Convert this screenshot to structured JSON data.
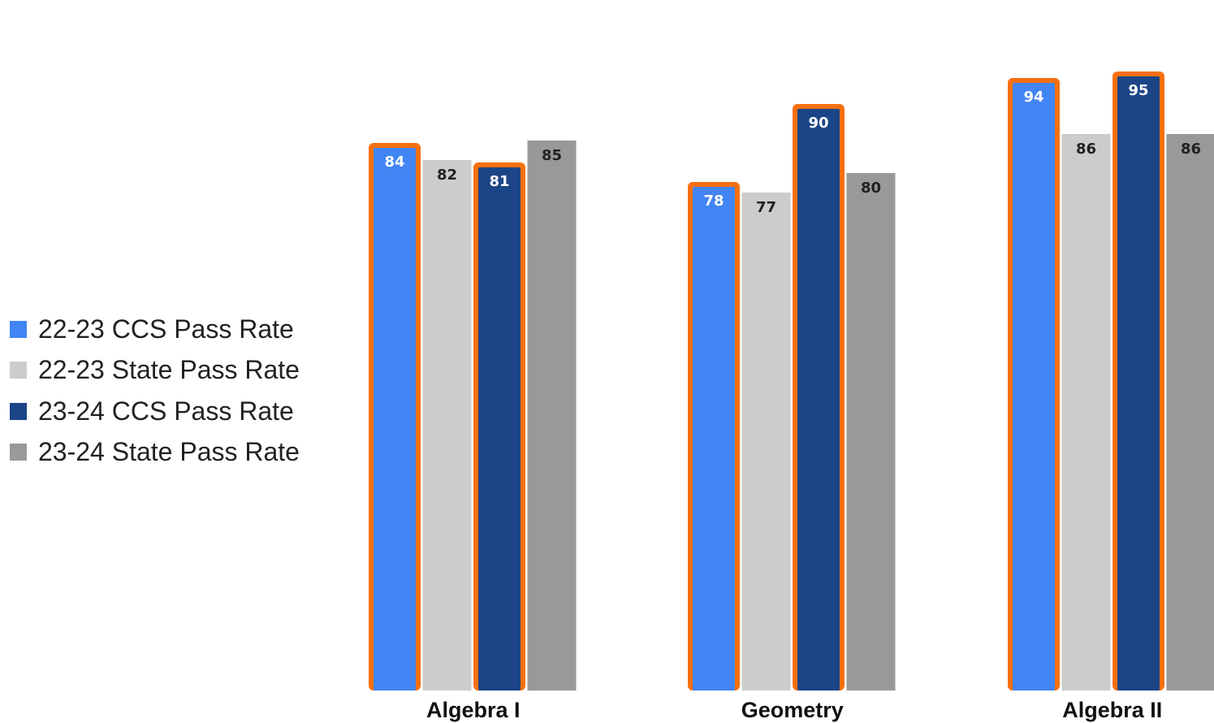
{
  "chart_data": {
    "type": "bar",
    "title": "",
    "xlabel": "",
    "ylabel": "",
    "ylim": [
      0,
      100
    ],
    "grid": false,
    "legend_position": "left",
    "categories": [
      "Algebra I",
      "Geometry",
      "Algebra II"
    ],
    "series": [
      {
        "name": "22-23 CCS Pass Rate",
        "color": "#4285f4",
        "label_color": "#ffffff",
        "values": [
          84,
          78,
          94
        ],
        "highlighted": [
          true,
          true,
          true
        ]
      },
      {
        "name": "22-23 State Pass Rate",
        "color": "#cccccc",
        "label_color": "#222222",
        "values": [
          82,
          77,
          86
        ],
        "highlighted": [
          false,
          false,
          false
        ]
      },
      {
        "name": "23-24 CCS Pass Rate",
        "color": "#1c4587",
        "label_color": "#ffffff",
        "values": [
          81,
          90,
          95
        ],
        "highlighted": [
          true,
          true,
          true
        ]
      },
      {
        "name": "23-24 State Pass Rate",
        "color": "#999999",
        "label_color": "#222222",
        "values": [
          85,
          80,
          86
        ],
        "highlighted": [
          false,
          false,
          false
        ]
      }
    ],
    "highlight_color": "#f6700f"
  }
}
